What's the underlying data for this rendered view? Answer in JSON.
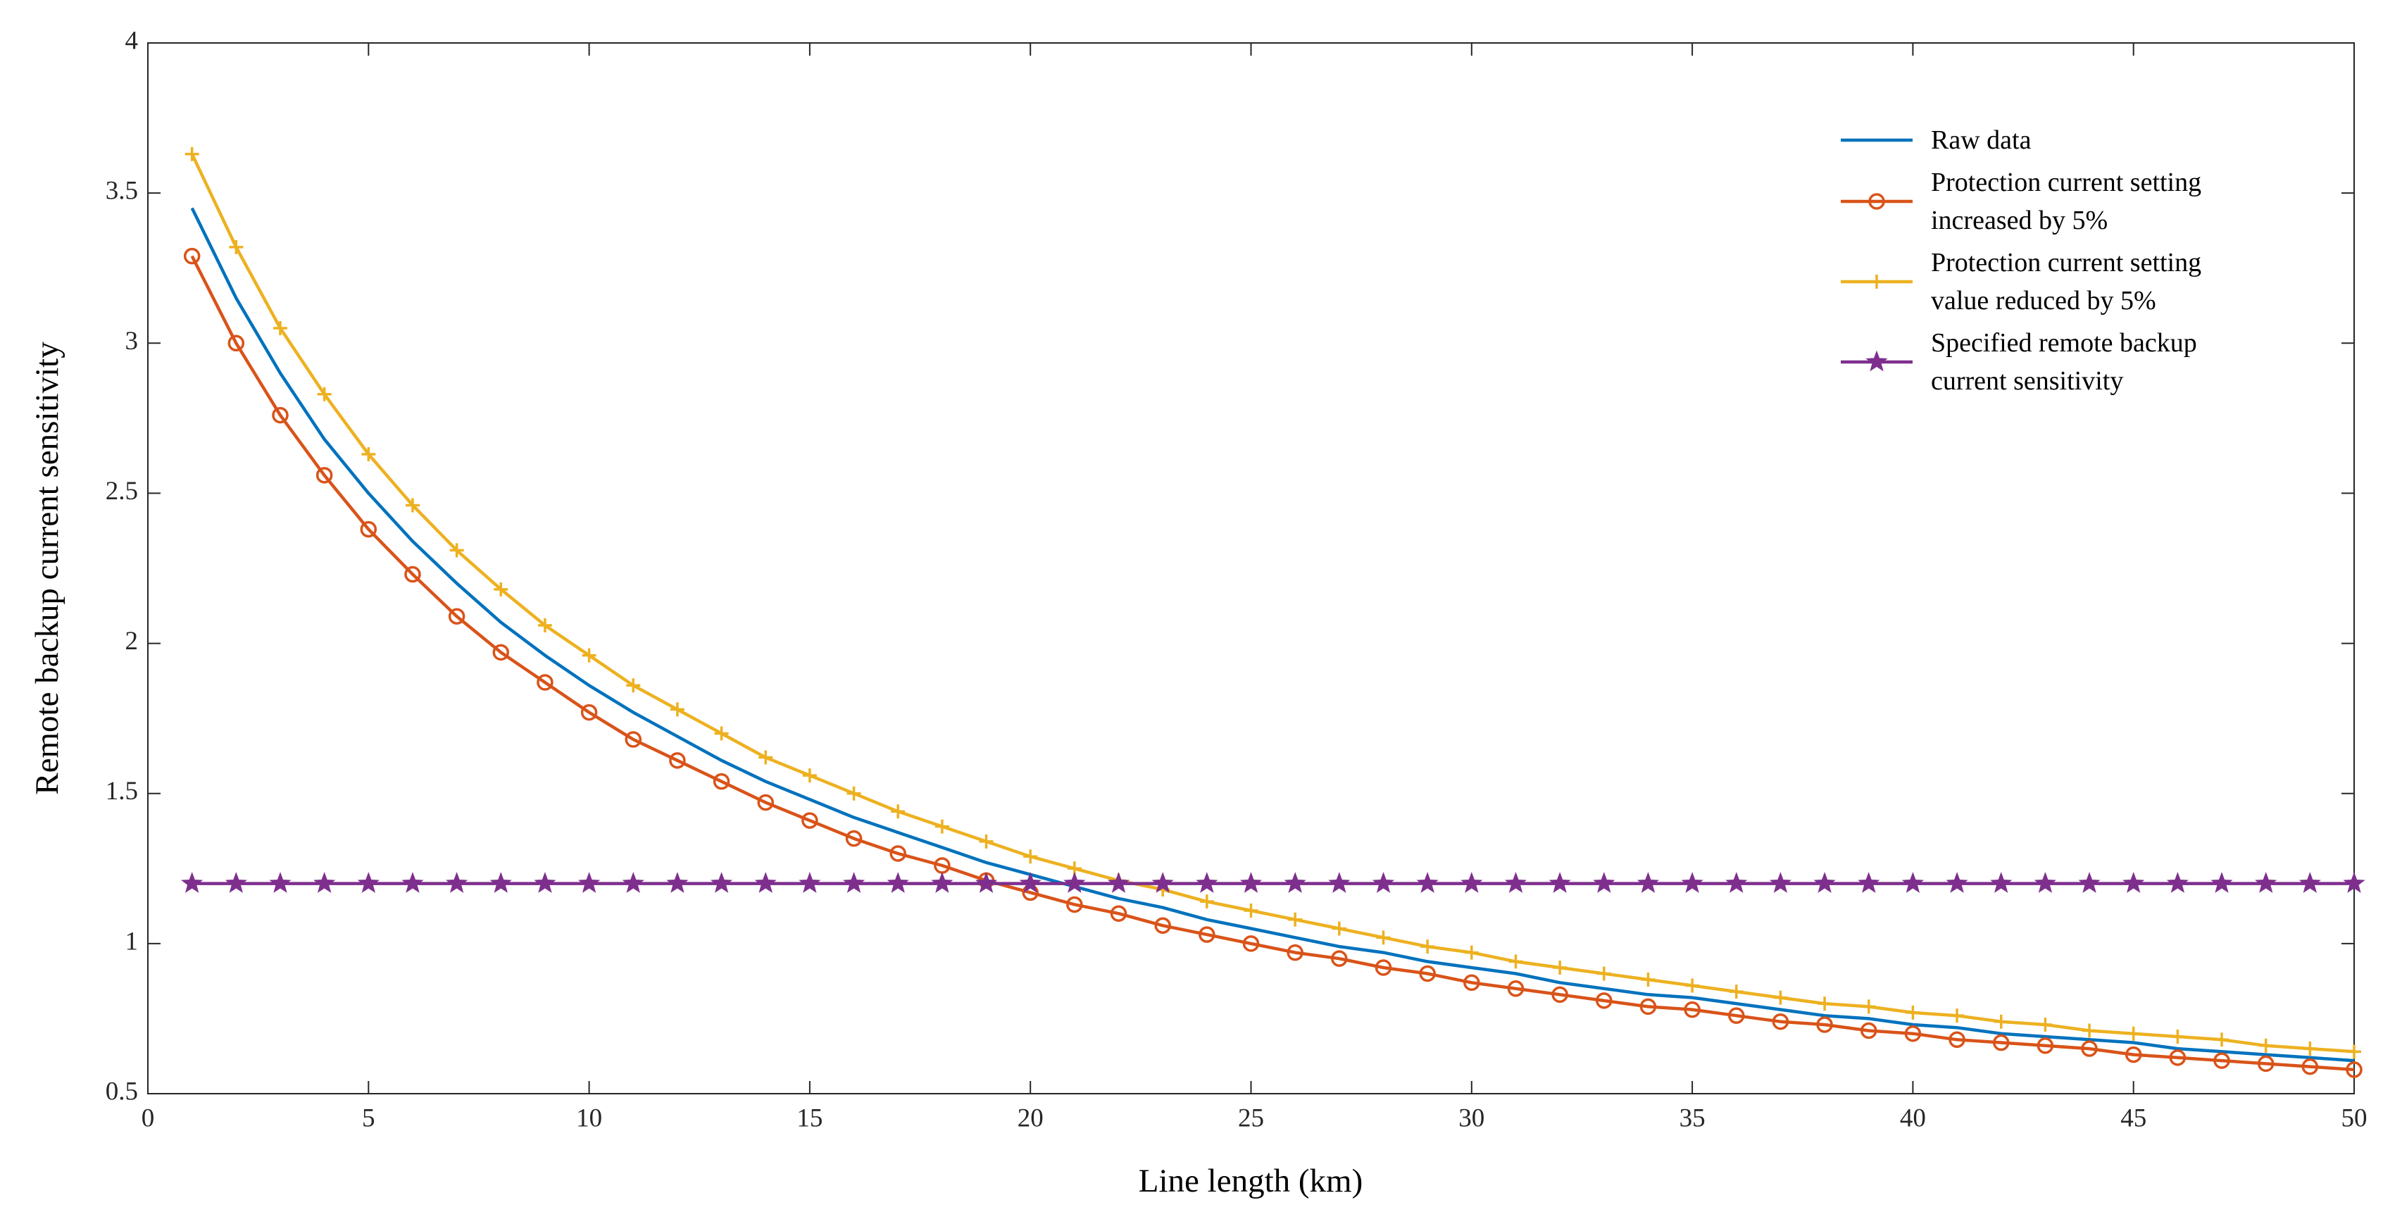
{
  "chart_data": {
    "type": "line",
    "xlabel": "Line length (km)",
    "ylabel": "Remote backup current sensitivity",
    "xlim": [
      0,
      50
    ],
    "xticks": [
      0,
      5,
      10,
      15,
      20,
      25,
      30,
      35,
      40,
      45,
      50
    ],
    "ylim": [
      0.5,
      4
    ],
    "yticks": [
      0.5,
      1,
      1.5,
      2,
      2.5,
      3,
      3.5,
      4
    ],
    "grid": false,
    "legend": "upper right",
    "x": [
      1,
      2,
      3,
      4,
      5,
      6,
      7,
      8,
      9,
      10,
      11,
      12,
      13,
      14,
      15,
      16,
      17,
      18,
      19,
      20,
      21,
      22,
      23,
      24,
      25,
      26,
      27,
      28,
      29,
      30,
      31,
      32,
      33,
      34,
      35,
      36,
      37,
      38,
      39,
      40,
      41,
      42,
      43,
      44,
      45,
      46,
      47,
      48,
      49,
      50
    ],
    "series": [
      {
        "name": "Raw data",
        "color": "#0072bd",
        "marker": null,
        "values": [
          3.45,
          3.15,
          2.9,
          2.68,
          2.5,
          2.34,
          2.2,
          2.07,
          1.96,
          1.86,
          1.77,
          1.69,
          1.61,
          1.54,
          1.48,
          1.42,
          1.37,
          1.32,
          1.27,
          1.23,
          1.19,
          1.15,
          1.12,
          1.08,
          1.05,
          1.02,
          0.99,
          0.97,
          0.94,
          0.92,
          0.9,
          0.87,
          0.85,
          0.83,
          0.82,
          0.8,
          0.78,
          0.76,
          0.75,
          0.73,
          0.72,
          0.7,
          0.69,
          0.68,
          0.67,
          0.65,
          0.64,
          0.63,
          0.62,
          0.61
        ]
      },
      {
        "name": "Protection current setting increased by 5%",
        "color": "#d95319",
        "marker": "o",
        "values": [
          3.29,
          3.0,
          2.76,
          2.56,
          2.38,
          2.23,
          2.09,
          1.97,
          1.87,
          1.77,
          1.68,
          1.61,
          1.54,
          1.47,
          1.41,
          1.35,
          1.3,
          1.26,
          1.21,
          1.17,
          1.13,
          1.1,
          1.06,
          1.03,
          1.0,
          0.97,
          0.95,
          0.92,
          0.9,
          0.87,
          0.85,
          0.83,
          0.81,
          0.79,
          0.78,
          0.76,
          0.74,
          0.73,
          0.71,
          0.7,
          0.68,
          0.67,
          0.66,
          0.65,
          0.63,
          0.62,
          0.61,
          0.6,
          0.59,
          0.58
        ]
      },
      {
        "name": "Protection current setting value reduced by 5%",
        "color": "#edb120",
        "marker": "+",
        "values": [
          3.63,
          3.32,
          3.05,
          2.83,
          2.63,
          2.46,
          2.31,
          2.18,
          2.06,
          1.96,
          1.86,
          1.78,
          1.7,
          1.62,
          1.56,
          1.5,
          1.44,
          1.39,
          1.34,
          1.29,
          1.25,
          1.21,
          1.18,
          1.14,
          1.11,
          1.08,
          1.05,
          1.02,
          0.99,
          0.97,
          0.94,
          0.92,
          0.9,
          0.88,
          0.86,
          0.84,
          0.82,
          0.8,
          0.79,
          0.77,
          0.76,
          0.74,
          0.73,
          0.71,
          0.7,
          0.69,
          0.68,
          0.66,
          0.65,
          0.64
        ]
      },
      {
        "name": "Specified remote backup current sensitivity",
        "color": "#7e2f8e",
        "marker": "*",
        "values": [
          1.2,
          1.2,
          1.2,
          1.2,
          1.2,
          1.2,
          1.2,
          1.2,
          1.2,
          1.2,
          1.2,
          1.2,
          1.2,
          1.2,
          1.2,
          1.2,
          1.2,
          1.2,
          1.2,
          1.2,
          1.2,
          1.2,
          1.2,
          1.2,
          1.2,
          1.2,
          1.2,
          1.2,
          1.2,
          1.2,
          1.2,
          1.2,
          1.2,
          1.2,
          1.2,
          1.2,
          1.2,
          1.2,
          1.2,
          1.2,
          1.2,
          1.2,
          1.2,
          1.2,
          1.2,
          1.2,
          1.2,
          1.2,
          1.2,
          1.2
        ]
      }
    ]
  }
}
